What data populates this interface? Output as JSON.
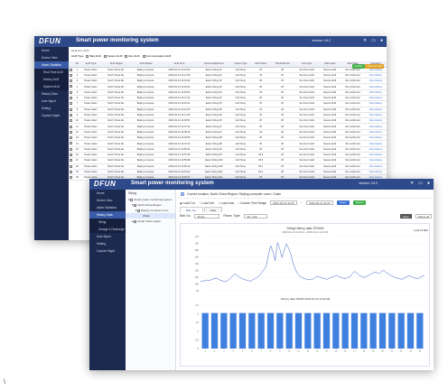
{
  "app": {
    "logo": "DFUN",
    "title": "Smart power monitoring system",
    "version": "Version: V4.2",
    "user": "Admin"
  },
  "win1": {
    "sidebar": [
      "Home",
      "Device View",
      "Alarm Statistics",
      "Real Time ALM",
      "History ALM",
      "System ALM",
      "History Data",
      "User Mgmt",
      "Setting",
      "Capture Mgmt"
    ],
    "breadcrumb": "Real-time ALM",
    "filters": [
      "ALM Type",
      "Batt ALM",
      "System ALM",
      "Env ALM",
      "Communication ALM"
    ],
    "buttons": {
      "confirm": "Confirm",
      "clear": "Clear All ALM"
    },
    "columns": [
      "",
      "No",
      "ALM Type",
      "ALM Region",
      "ALM Station",
      "ALM Time",
      "Current Equipment",
      "Param Type",
      "ALM Value",
      "Threshold Set",
      "Limit Type",
      "ALM Level",
      "ALM State",
      "Operation"
    ],
    "rows": [
      [
        "1",
        "Power Alarm",
        "North China Re..",
        "Beijing compute..",
        "2023-04-14 14:21:53",
        "Eaton String #1",
        "Cell Temp.",
        "25",
        "25",
        "Set Over Hold",
        "Severe ALM",
        "Not confirmed",
        "View History"
      ],
      [
        "2",
        "Power Alarm",
        "North China Re..",
        "Beijing compute..",
        "2023-04-14 14:21:53",
        "Eaton String #1",
        "Cell Temp.",
        "25",
        "25",
        "Set Over Hold",
        "Severe ALM",
        "Not confirmed",
        "View History"
      ],
      [
        "3",
        "Power Alarm",
        "North China Re..",
        "Beijing compute..",
        "2023-04-14 14:19:22",
        "Eaton String #2",
        "Cell Temp.",
        "25",
        "25",
        "Set Over Hold",
        "Severe ALM",
        "Not confirmed",
        "View History"
      ],
      [
        "4",
        "Power Alarm",
        "North China Re..",
        "Beijing compute..",
        "2023-04-14 14:19:22",
        "Eaton String #2",
        "Cell Temp.",
        "25",
        "25",
        "Set Over Hold",
        "Severe ALM",
        "Not confirmed",
        "View History"
      ],
      [
        "5",
        "Power Alarm",
        "North China Re..",
        "Beijing compute..",
        "2023-04-14 14:18:04",
        "Eaton String #3",
        "Cell Temp.",
        "25",
        "25",
        "Set Over Hold",
        "Severe ALM",
        "Not confirmed",
        "View History"
      ],
      [
        "6",
        "Power Alarm",
        "North China Re..",
        "Beijing compute..",
        "2023-04-14 14:17:44",
        "Eaton String #4",
        "Cell Temp.",
        "25",
        "25",
        "Set Over Hold",
        "Severe ALM",
        "Not confirmed",
        "View History"
      ],
      [
        "7",
        "Power Alarm",
        "North China Re..",
        "Beijing compute..",
        "2023-04-14 14:16:31",
        "Eaton String #5",
        "Cell Temp.",
        "25",
        "25",
        "Set Over Hold",
        "Severe ALM",
        "Not confirmed",
        "View History"
      ],
      [
        "8",
        "Power Alarm",
        "North China Re..",
        "Beijing compute..",
        "2023-04-14 14:13:20",
        "Eaton String #5",
        "Cell Temp.",
        "25",
        "25",
        "Set Over Hold",
        "Severe ALM",
        "Not confirmed",
        "View History"
      ],
      [
        "9",
        "Power Alarm",
        "North China Re..",
        "Beijing compute..",
        "2023-04-14 14:11:09",
        "Eaton String #6",
        "Cell Temp.",
        "25",
        "25",
        "Set Over Hold",
        "Severe ALM",
        "Not confirmed",
        "View History"
      ],
      [
        "10",
        "Power Alarm",
        "North China Re..",
        "Beijing compute..",
        "2023-04-14 14:09:51",
        "Eaton String #6",
        "Cell Temp.",
        "25",
        "25",
        "Set Over Hold",
        "Severe ALM",
        "Not confirmed",
        "View History"
      ],
      [
        "11",
        "Power Alarm",
        "North China Re..",
        "Beijing compute..",
        "2023-04-14 14:07:32",
        "Eaton String #7",
        "Cell Temp.",
        "25",
        "25",
        "Set Over Hold",
        "Severe ALM",
        "Not confirmed",
        "View History"
      ],
      [
        "12",
        "Power Alarm",
        "North China Re..",
        "Beijing compute..",
        "2023-04-14 14:05:16",
        "Eaton String #7",
        "Cell Temp.",
        "25",
        "25",
        "Set Over Hold",
        "Severe ALM",
        "Not confirmed",
        "View History"
      ],
      [
        "13",
        "Power Alarm",
        "North China Re..",
        "Beijing compute..",
        "2023-04-14 14:03:08",
        "Eaton String #8",
        "Cell Temp.",
        "25",
        "25",
        "Set Over Hold",
        "Severe ALM",
        "Not confirmed",
        "View History"
      ],
      [
        "14",
        "Power Alarm",
        "North China Re..",
        "Beijing compute..",
        "2023-04-14 14:01:44",
        "Eaton String #8",
        "Cell Temp.",
        "25",
        "25",
        "Set Over Hold",
        "Severe ALM",
        "Not confirmed",
        "View History"
      ],
      [
        "15",
        "Power Alarm",
        "North China Re..",
        "Beijing compute..",
        "2023-04-14 13:59:31",
        "Eaton String #9",
        "Cell Temp.",
        "25",
        "25",
        "Set Over Hold",
        "Severe ALM",
        "Not confirmed",
        "View History"
      ],
      [
        "16",
        "Power Alarm",
        "North China Re..",
        "Beijing compute..",
        "2023-04-14 13:57:06",
        "Eaton String #9",
        "Cell Temp.",
        "25.5",
        "25",
        "Set Over Hold",
        "Severe ALM",
        "Not confirmed",
        "View History"
      ],
      [
        "17",
        "Power Alarm",
        "North China Re..",
        "Beijing compute..",
        "2023-04-14 13:55:28",
        "Eaton String #10",
        "Cell Temp.",
        "25.5",
        "25",
        "Set Over Hold",
        "Severe ALM",
        "Not confirmed",
        "View History"
      ],
      [
        "18",
        "Power Alarm",
        "North China Re..",
        "Beijing compute..",
        "2023-04-14 13:53:12",
        "Eaton String #10",
        "Cell Temp.",
        "25.1",
        "25",
        "Set Over Hold",
        "Severe ALM",
        "Not confirmed",
        "View History"
      ],
      [
        "19",
        "Power Alarm",
        "North China Re..",
        "Beijing compute..",
        "2023-04-14 13:51:02",
        "Eaton String #11",
        "Cell Temp.",
        "25.1",
        "25",
        "Set Over Hold",
        "Severe ALM",
        "Not confirmed",
        "View History"
      ],
      [
        "20",
        "Power Alarm",
        "North China Re..",
        "Beijing compute..",
        "2023-04-14 13:49:47",
        "Eaton String #11",
        "Cell Temp.",
        "25",
        "25",
        "Set Over Hold",
        "Severe ALM",
        "Not confirmed",
        "View History"
      ]
    ]
  },
  "win2": {
    "sidebar": [
      "Home",
      "Device View",
      "Alarm Statistics",
      "History Data",
      "String",
      "Charge & Discharge",
      "User Mgmt",
      "Setting",
      "Capture Mgmt"
    ],
    "tree_title": "String",
    "tree": [
      "Smart power monitoring system",
      "North China Region",
      "Beijing computer room",
      "Chain",
      "South China region"
    ],
    "current_position": "Current location: North China Region / Beijing computer room / Chain",
    "radios": [
      "Load Cur.",
      "Load Volt.",
      "Load Imax",
      "Custom Time Range"
    ],
    "date_from": "2023-04-14 11:23",
    "date_to": "2023-04-14 11:23",
    "query_btn": "Query",
    "export_btn": "Export",
    "tabs": [
      "Batt. No.",
      "Data"
    ],
    "batt_label": "Batt. No.",
    "batt_value": "String",
    "param_label": "Param. Type:",
    "param_value": "Sin. Volt",
    "btn_clear": "Clear",
    "btn_selectall": "Select all",
    "legend": "Load 1# Batt",
    "chart1_title": "String History data TES#2#",
    "chart1_sub": "2023-04-14 11:23:14 ~ 2023-04-14 11:22:09",
    "chart2_title": "History data TES#2 2023-04-14 11:22:09",
    "chart_data": [
      {
        "type": "line",
        "title": "String History data TES#2#",
        "ylim": [
          0,
          170
        ],
        "yticks": [
          "170",
          "160",
          "150",
          "140",
          "130",
          "120",
          "110",
          "100",
          "90"
        ],
        "series": [
          {
            "name": "Load 1# Batt",
            "values": [
              95,
              96,
              97,
              98,
              97,
              99,
              100,
              101,
              99,
              97,
              96,
              95,
              97,
              100,
              104,
              108,
              106,
              103,
              101,
              99,
              98,
              97,
              96,
              98,
              100,
              102,
              105,
              110,
              115,
              120,
              140,
              155,
              145,
              130,
              160,
              150,
              135,
              148,
              158,
              150,
              140,
              125,
              115,
              108,
              104,
              102,
              100,
              99,
              98,
              99,
              100,
              103,
              104,
              102,
              101,
              100,
              99,
              101,
              102,
              104,
              106,
              104,
              102,
              101,
              100,
              102,
              103,
              108,
              112,
              110,
              106,
              104,
              102,
              103,
              105,
              107,
              109,
              111,
              110,
              108,
              112,
              114,
              110,
              108,
              106,
              104,
              102,
              101,
              100,
              99,
              101,
              103,
              105,
              104,
              102,
              101,
              100,
              102,
              104,
              106
            ]
          }
        ]
      },
      {
        "type": "bar",
        "title": "History data TES#2 2023-04-14 11:22:09",
        "ylim": [
          0,
          2.5
        ],
        "yticks": [
          "2.5",
          "2",
          "1.5",
          "1",
          "0.5",
          "0"
        ],
        "categories": [
          "1",
          "2",
          "3",
          "4",
          "5",
          "6",
          "7",
          "8",
          "9",
          "10",
          "11",
          "12",
          "13",
          "14",
          "15",
          "16",
          "17",
          "18",
          "19",
          "20",
          "21",
          "22",
          "23",
          "24"
        ],
        "values": [
          2.05,
          2.05,
          2.05,
          2.05,
          2.05,
          2.05,
          2.05,
          2.05,
          2.05,
          2.05,
          2.05,
          2.05,
          2.05,
          2.05,
          2.05,
          2.05,
          2.05,
          2.05,
          2.05,
          2.05,
          2.05,
          2.05,
          2.05,
          2.05
        ]
      }
    ]
  },
  "colors": {
    "topbar": "#2e4a8a",
    "sidebar": "#1d2a4f",
    "accent": "#3a6fd0",
    "bar": "#3f7fe0",
    "line": "#3f63c9"
  },
  "footnote": "\\"
}
